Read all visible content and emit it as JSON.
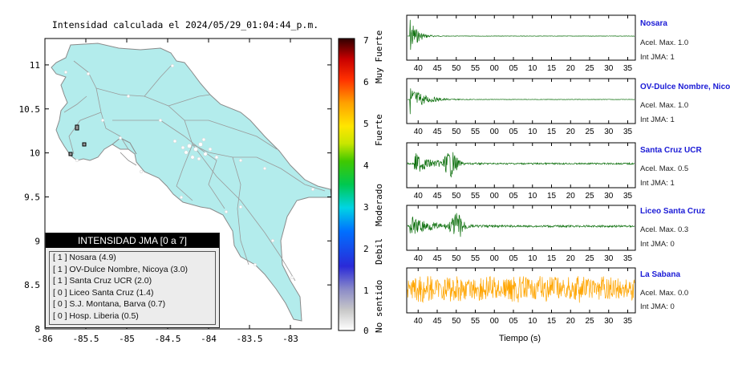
{
  "map": {
    "title": "Intensidad calculada el 2024/05/29_01:04:44_p.m.",
    "x_ticks": [
      "-86",
      "-85.5",
      "-85",
      "-84.5",
      "-84",
      "-83.5",
      "-83"
    ],
    "y_ticks": [
      "11",
      "10.5",
      "10",
      "9.5",
      "9",
      "8.5",
      "8"
    ],
    "land_color": "#b3ecec",
    "road_color": "#9a9a9a"
  },
  "colorbar": {
    "ticks": [
      "0",
      "1",
      "2",
      "3",
      "4",
      "5",
      "6",
      "7"
    ],
    "categories": [
      "No sentido",
      "Debil",
      "Moderado",
      "Fuerte",
      "Muy Fuerte"
    ]
  },
  "legend": {
    "title": "INTENSIDAD JMA [0 a 7]",
    "items": [
      "[ 1 ]  Nosara (4.9)",
      "[ 1 ]  OV-Dulce Nombre, Nicoya (3.0)",
      "[ 1 ]  Santa Cruz UCR (2.0)",
      "[ 0 ]  Liceo Santa Cruz (1.4)",
      "[ 0 ]  S.J. Montana, Barva (0.7)",
      "[ 0 ]  Hosp. Liberia (0.5)"
    ]
  },
  "stations": [
    {
      "name": "Nosara",
      "accel": "Acel. Max. 1.0",
      "jma": "Int JMA: 1",
      "color": "#0a6e0a"
    },
    {
      "name": "OV-Dulce Nombre, Nicoya",
      "accel": "Acel. Max. 1.0",
      "jma": "Int JMA: 1",
      "color": "#0a6e0a"
    },
    {
      "name": "Santa Cruz UCR",
      "accel": "Acel. Max. 0.5",
      "jma": "Int JMA: 1",
      "color": "#0a6e0a"
    },
    {
      "name": "Liceo Santa Cruz",
      "accel": "Acel. Max. 0.3",
      "jma": "Int JMA: 0",
      "color": "#0a6e0a"
    },
    {
      "name": "La Sabana",
      "accel": "Acel. Max. 0.0",
      "jma": "Int JMA: 0",
      "color": "#ffa500"
    }
  ],
  "traces": {
    "time_ticks": [
      "40",
      "45",
      "50",
      "55",
      "00",
      "05",
      "10",
      "15",
      "20",
      "25",
      "30",
      "35"
    ],
    "xlabel": "Tiempo (s)"
  },
  "chart_data": [
    {
      "type": "heatmap",
      "title": "Intensidad calculada el 2024/05/29_01:04:44_p.m.",
      "x_ticks": [
        -86,
        -85.5,
        -85,
        -84.5,
        -84,
        -83.5,
        -83
      ],
      "y_ticks": [
        11,
        10.5,
        10,
        9.5,
        9,
        8.5,
        8
      ],
      "xlim": [
        -86,
        -82.5
      ],
      "ylim": [
        8,
        11.3
      ],
      "colorbar_range": [
        0,
        7
      ],
      "legend_location": "bottom-left"
    },
    {
      "type": "line",
      "xlabel": "Tiempo (s)",
      "series": [
        {
          "name": "Nosara",
          "peak_acceleration": 1.0,
          "jma_intensity": 1
        },
        {
          "name": "OV-Dulce Nombre, Nicoya",
          "peak_acceleration": 1.0,
          "jma_intensity": 1
        },
        {
          "name": "Santa Cruz UCR",
          "peak_acceleration": 0.5,
          "jma_intensity": 1
        },
        {
          "name": "Liceo Santa Cruz",
          "peak_acceleration": 0.3,
          "jma_intensity": 0
        },
        {
          "name": "La Sabana",
          "peak_acceleration": 0.0,
          "jma_intensity": 0
        }
      ]
    }
  ]
}
